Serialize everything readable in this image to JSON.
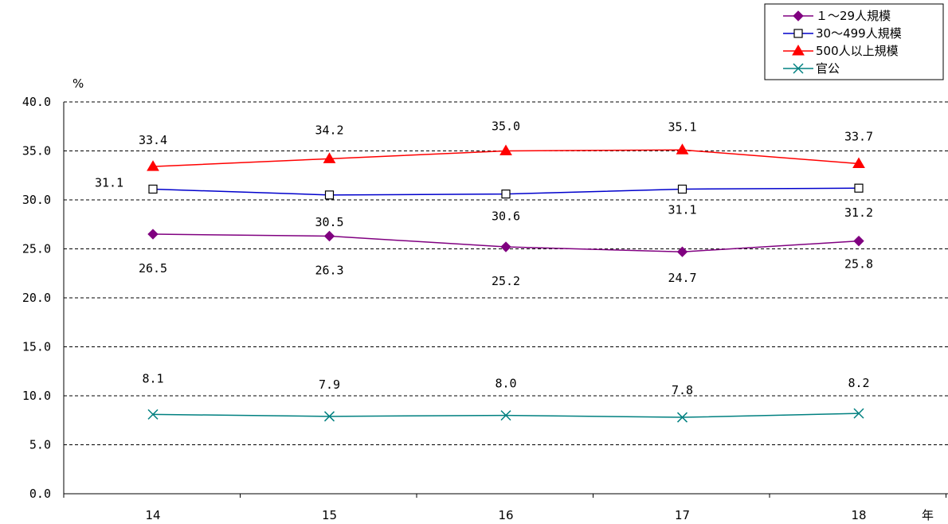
{
  "chart_data": {
    "type": "line",
    "ylabel": "%",
    "xlabel": "年",
    "ylim": [
      0,
      40
    ],
    "yticks": [
      "0.0",
      "5.0",
      "10.0",
      "15.0",
      "20.0",
      "25.0",
      "30.0",
      "35.0",
      "40.0"
    ],
    "categories": [
      "14",
      "15",
      "16",
      "17",
      "18"
    ],
    "grid": "horizontal dashed",
    "legend_position": "top-right",
    "series": [
      {
        "name": "１～29人規模",
        "color": "#800080",
        "marker": "diamond",
        "values": [
          26.5,
          26.3,
          25.2,
          24.7,
          25.8
        ],
        "labels": [
          "26.5",
          "26.3",
          "25.2",
          "24.7",
          "25.8"
        ],
        "label_position": "below"
      },
      {
        "name": "30～499人規模",
        "color": "#0000cc",
        "marker": "square-open",
        "values": [
          31.1,
          30.5,
          30.6,
          31.1,
          31.2
        ],
        "labels": [
          "31.1",
          "30.5",
          "30.6",
          "31.1",
          "31.2"
        ],
        "label_position": "mixed"
      },
      {
        "name": "500人以上規模",
        "color": "#ff0000",
        "marker": "triangle",
        "values": [
          33.4,
          34.2,
          35.0,
          35.1,
          33.7
        ],
        "labels": [
          "33.4",
          "34.2",
          "35.0",
          "35.1",
          "33.7"
        ],
        "label_position": "above"
      },
      {
        "name": "官公",
        "color": "#008080",
        "marker": "x",
        "values": [
          8.1,
          7.9,
          8.0,
          7.8,
          8.2
        ],
        "labels": [
          "8.1",
          "7.9",
          "8.0",
          "7.8",
          "8.2"
        ],
        "label_position": "above"
      }
    ]
  }
}
